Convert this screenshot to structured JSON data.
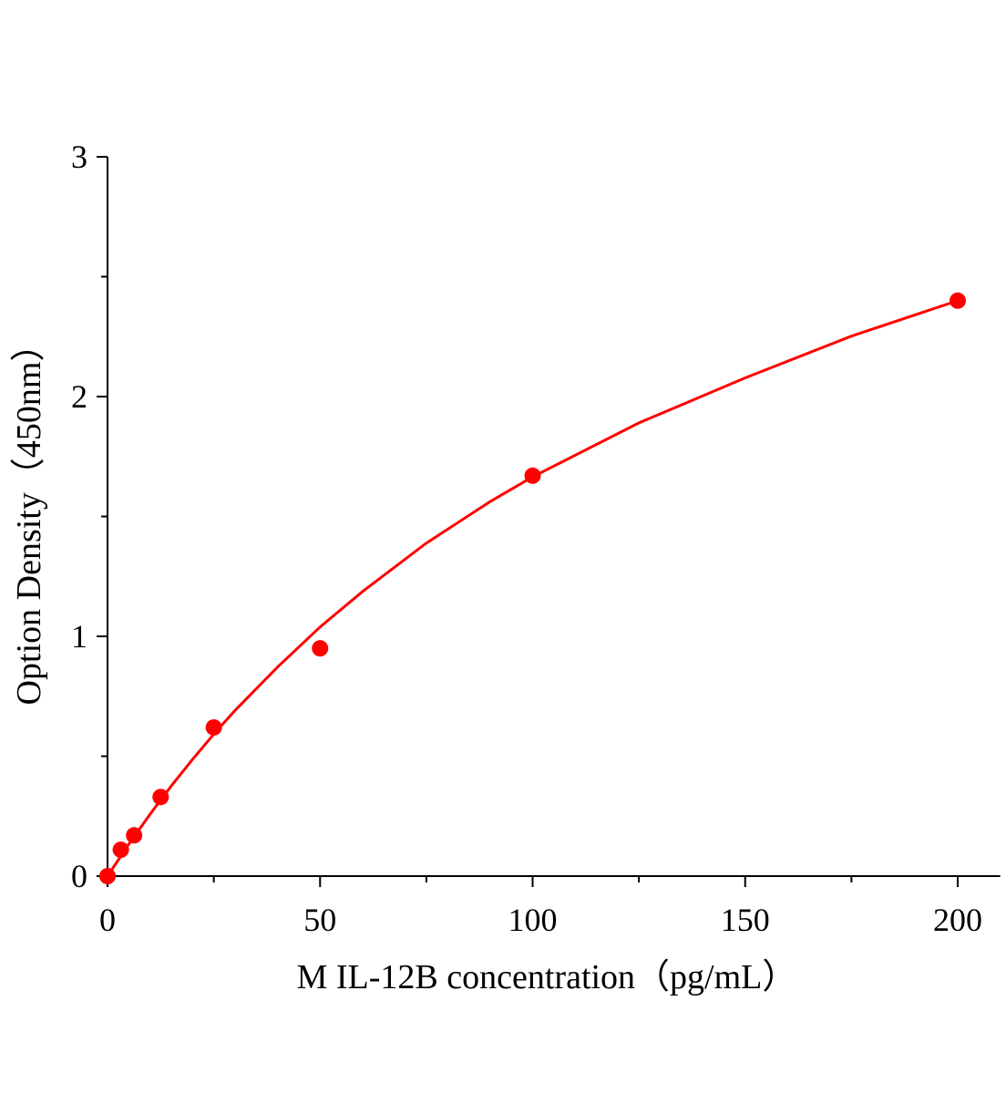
{
  "chart_data": {
    "type": "scatter",
    "title": "",
    "xlabel": "M IL-12B concentration（pg/mL）",
    "ylabel": "Option Density（450nm）",
    "xlim": [
      0,
      210
    ],
    "ylim": [
      0,
      3
    ],
    "x_ticks": [
      0,
      50,
      100,
      150,
      200
    ],
    "y_ticks": [
      0,
      1,
      2,
      3
    ],
    "x_minor_step": 25,
    "y_minor_step": 0.5,
    "grid": false,
    "color": "#ff0000",
    "series": [
      {
        "x": [
          0,
          3.125,
          6.25,
          12.5,
          25,
          50,
          100,
          200
        ],
        "y": [
          0,
          0.11,
          0.17,
          0.33,
          0.62,
          0.95,
          1.67,
          2.4
        ]
      }
    ],
    "fit_curve": {
      "x": [
        0,
        5,
        10,
        15,
        20,
        25,
        30,
        40,
        50,
        60,
        75,
        90,
        100,
        125,
        150,
        175,
        200
      ],
      "y": [
        0,
        0.133,
        0.258,
        0.376,
        0.487,
        0.592,
        0.691,
        0.872,
        1.039,
        1.187,
        1.389,
        1.562,
        1.665,
        1.89,
        2.078,
        2.252,
        2.4
      ]
    }
  }
}
